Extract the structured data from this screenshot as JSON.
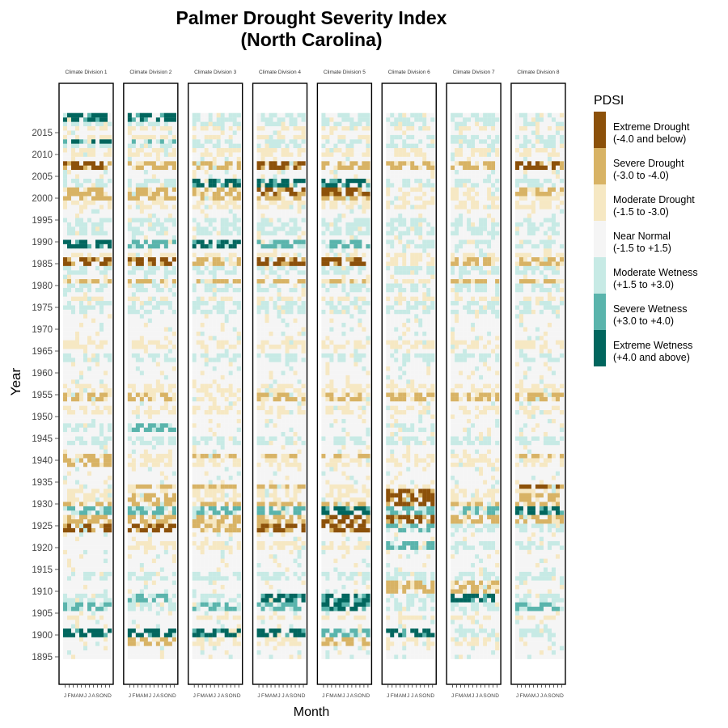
{
  "chart_data": {
    "type": "heatmap",
    "title_lines": [
      "Palmer Drought Severity Index",
      "(North Carolina)"
    ],
    "xlabel": "Month",
    "ylabel": "Year",
    "facet_titles": [
      "Climate Division 1",
      "Climate Division 2",
      "Climate Division 3",
      "Climate Division 4",
      "Climate Division 5",
      "Climate Division 6",
      "Climate Division 7",
      "Climate Division 8"
    ],
    "month_tick_labels": [
      "J",
      "F",
      "M",
      "A",
      "M",
      "J",
      "J",
      "A",
      "S",
      "O",
      "N",
      "D"
    ],
    "year_range": [
      1895,
      2019
    ],
    "y_tick_years": [
      1895,
      1900,
      1905,
      1910,
      1915,
      1920,
      1925,
      1930,
      1935,
      1940,
      1945,
      1950,
      1955,
      1960,
      1965,
      1970,
      1975,
      1980,
      1985,
      1990,
      1995,
      2000,
      2005,
      2010,
      2015
    ],
    "y_tick_labels": [
      "1895",
      "1900",
      "1905",
      "1910",
      "1915",
      "1920",
      "1925",
      "1930",
      "1935",
      "1940",
      "1945",
      "1950",
      "1955",
      "1960",
      "1965",
      "1970",
      "1975",
      "1980",
      "1985",
      "1990",
      "1995",
      "2000",
      "2005",
      "2010",
      "2015"
    ],
    "legend": {
      "title": "PDSI",
      "position": "right",
      "classes": [
        {
          "line1": "Extreme Drought",
          "line2": "(-4.0 and below)",
          "color": "#8c510a"
        },
        {
          "line1": "Severe Drought",
          "line2": "(-3.0 to -4.0)",
          "color": "#d8b365"
        },
        {
          "line1": "Moderate Drought",
          "line2": "(-1.5 to -3.0)",
          "color": "#f6e8c3"
        },
        {
          "line1": "Near Normal",
          "line2": "(-1.5 to +1.5)",
          "color": "#f5f5f5"
        },
        {
          "line1": "Moderate Wetness",
          "line2": "(+1.5 to +3.0)",
          "color": "#c7eae5"
        },
        {
          "line1": "Severe Wetness",
          "line2": "(+3.0 to +4.0)",
          "color": "#5ab4ac"
        },
        {
          "line1": "Extreme Wetness",
          "line2": "(+4.0 and above)",
          "color": "#01665e"
        }
      ]
    },
    "class_key": "0=Extreme Drought, 1=Severe Drought, 2=Moderate Drought, 3=Near Normal, 4=Moderate Wetness, 5=Severe Wetness, 6=Extreme Wetness",
    "episodes": [
      {
        "years": [
          1898,
          1899
        ],
        "div": [
          3,
          1,
          2,
          2,
          1,
          2,
          2,
          3
        ]
      },
      {
        "years": [
          1900,
          1901
        ],
        "div": [
          6,
          6,
          6,
          6,
          5,
          6,
          4,
          4
        ]
      },
      {
        "years": [
          1902,
          1903
        ],
        "div": [
          3,
          3,
          3,
          3,
          3,
          3,
          3,
          3
        ]
      },
      {
        "years": [
          1904,
          1904
        ],
        "div": [
          2,
          3,
          2,
          2,
          2,
          2,
          2,
          2
        ]
      },
      {
        "years": [
          1906,
          1907
        ],
        "div": [
          5,
          4,
          5,
          5,
          6,
          4,
          4,
          5
        ]
      },
      {
        "years": [
          1908,
          1909
        ],
        "div": [
          4,
          5,
          4,
          6,
          6,
          4,
          6,
          4
        ]
      },
      {
        "years": [
          1910,
          1912
        ],
        "div": [
          3,
          3,
          3,
          3,
          3,
          1,
          1,
          3
        ]
      },
      {
        "years": [
          1913,
          1914
        ],
        "div": [
          4,
          4,
          4,
          4,
          4,
          4,
          4,
          4
        ]
      },
      {
        "years": [
          1920,
          1921
        ],
        "div": [
          3,
          2,
          2,
          2,
          2,
          5,
          4,
          4
        ]
      },
      {
        "years": [
          1924,
          1925
        ],
        "div": [
          0,
          0,
          1,
          0,
          0,
          5,
          4,
          4
        ]
      },
      {
        "years": [
          1926,
          1927
        ],
        "div": [
          1,
          1,
          1,
          1,
          0,
          0,
          1,
          1
        ]
      },
      {
        "years": [
          1928,
          1929
        ],
        "div": [
          5,
          5,
          5,
          5,
          6,
          5,
          5,
          6
        ]
      },
      {
        "years": [
          1930,
          1930
        ],
        "div": [
          1,
          1,
          1,
          1,
          1,
          0,
          1,
          1
        ]
      },
      {
        "years": [
          1931,
          1932
        ],
        "div": [
          2,
          1,
          2,
          2,
          2,
          0,
          2,
          1
        ]
      },
      {
        "years": [
          1933,
          1933
        ],
        "div": [
          2,
          2,
          2,
          2,
          2,
          0,
          2,
          2
        ]
      },
      {
        "years": [
          1934,
          1934
        ],
        "div": [
          3,
          1,
          1,
          1,
          2,
          2,
          3,
          0
        ]
      },
      {
        "years": [
          1939,
          1940
        ],
        "div": [
          1,
          2,
          2,
          2,
          2,
          2,
          2,
          2
        ]
      },
      {
        "years": [
          1941,
          1941
        ],
        "div": [
          1,
          2,
          1,
          1,
          1,
          2,
          2,
          1
        ]
      },
      {
        "years": [
          1944,
          1945
        ],
        "div": [
          4,
          4,
          4,
          4,
          4,
          4,
          4,
          4
        ]
      },
      {
        "years": [
          1947,
          1948
        ],
        "div": [
          4,
          5,
          3,
          3,
          3,
          4,
          3,
          3
        ]
      },
      {
        "years": [
          1951,
          1952
        ],
        "div": [
          2,
          2,
          2,
          2,
          2,
          2,
          2,
          2
        ]
      },
      {
        "years": [
          1954,
          1955
        ],
        "div": [
          1,
          1,
          2,
          1,
          1,
          1,
          1,
          1
        ]
      },
      {
        "years": [
          1956,
          1957
        ],
        "div": [
          2,
          2,
          2,
          2,
          2,
          2,
          2,
          2
        ]
      },
      {
        "years": [
          1963,
          1964
        ],
        "div": [
          4,
          4,
          4,
          4,
          4,
          4,
          4,
          4
        ]
      },
      {
        "years": [
          1966,
          1967
        ],
        "div": [
          2,
          2,
          2,
          2,
          2,
          2,
          2,
          2
        ]
      },
      {
        "years": [
          1974,
          1976
        ],
        "div": [
          4,
          4,
          4,
          4,
          4,
          4,
          4,
          4
        ]
      },
      {
        "years": [
          1977,
          1977
        ],
        "div": [
          2,
          2,
          2,
          2,
          2,
          2,
          2,
          2
        ]
      },
      {
        "years": [
          1979,
          1980
        ],
        "div": [
          4,
          4,
          4,
          4,
          4,
          4,
          4,
          4
        ]
      },
      {
        "years": [
          1981,
          1981
        ],
        "div": [
          1,
          1,
          1,
          1,
          1,
          2,
          1,
          1
        ]
      },
      {
        "years": [
          1983,
          1984
        ],
        "div": [
          4,
          4,
          4,
          4,
          4,
          4,
          4,
          4
        ]
      },
      {
        "years": [
          1985,
          1986
        ],
        "div": [
          0,
          0,
          1,
          0,
          0,
          2,
          1,
          1
        ]
      },
      {
        "years": [
          1987,
          1987
        ],
        "div": [
          2,
          2,
          2,
          2,
          2,
          2,
          2,
          2
        ]
      },
      {
        "years": [
          1989,
          1990
        ],
        "div": [
          6,
          5,
          6,
          5,
          5,
          4,
          4,
          4
        ]
      },
      {
        "years": [
          1992,
          1995
        ],
        "div": [
          4,
          4,
          4,
          4,
          4,
          4,
          4,
          4
        ]
      },
      {
        "years": [
          1998,
          1999
        ],
        "div": [
          2,
          2,
          2,
          2,
          2,
          2,
          2,
          2
        ]
      },
      {
        "years": [
          2000,
          2000
        ],
        "div": [
          1,
          1,
          1,
          1,
          1,
          2,
          2,
          2
        ]
      },
      {
        "years": [
          2001,
          2002
        ],
        "div": [
          1,
          1,
          1,
          0,
          0,
          2,
          2,
          1
        ]
      },
      {
        "years": [
          2003,
          2004
        ],
        "div": [
          4,
          4,
          6,
          6,
          6,
          4,
          4,
          4
        ]
      },
      {
        "years": [
          2007,
          2008
        ],
        "div": [
          0,
          1,
          1,
          0,
          1,
          1,
          1,
          0
        ]
      },
      {
        "years": [
          2010,
          2011
        ],
        "div": [
          2,
          2,
          2,
          2,
          2,
          2,
          2,
          2
        ]
      },
      {
        "years": [
          2012,
          2012
        ],
        "div": [
          4,
          4,
          4,
          4,
          4,
          4,
          4,
          4
        ]
      },
      {
        "years": [
          2013,
          2013
        ],
        "div": [
          6,
          5,
          4,
          4,
          4,
          4,
          4,
          4
        ]
      },
      {
        "years": [
          2014,
          2014
        ],
        "div": [
          2,
          2,
          2,
          2,
          2,
          4,
          4,
          4
        ]
      },
      {
        "years": [
          2016,
          2016
        ],
        "div": [
          2,
          2,
          2,
          2,
          2,
          2,
          2,
          2
        ]
      },
      {
        "years": [
          2017,
          2017
        ],
        "div": [
          4,
          4,
          4,
          4,
          4,
          4,
          4,
          4
        ]
      },
      {
        "years": [
          2018,
          2019
        ],
        "div": [
          6,
          6,
          4,
          4,
          4,
          4,
          4,
          4
        ]
      }
    ],
    "default_class": 3
  }
}
